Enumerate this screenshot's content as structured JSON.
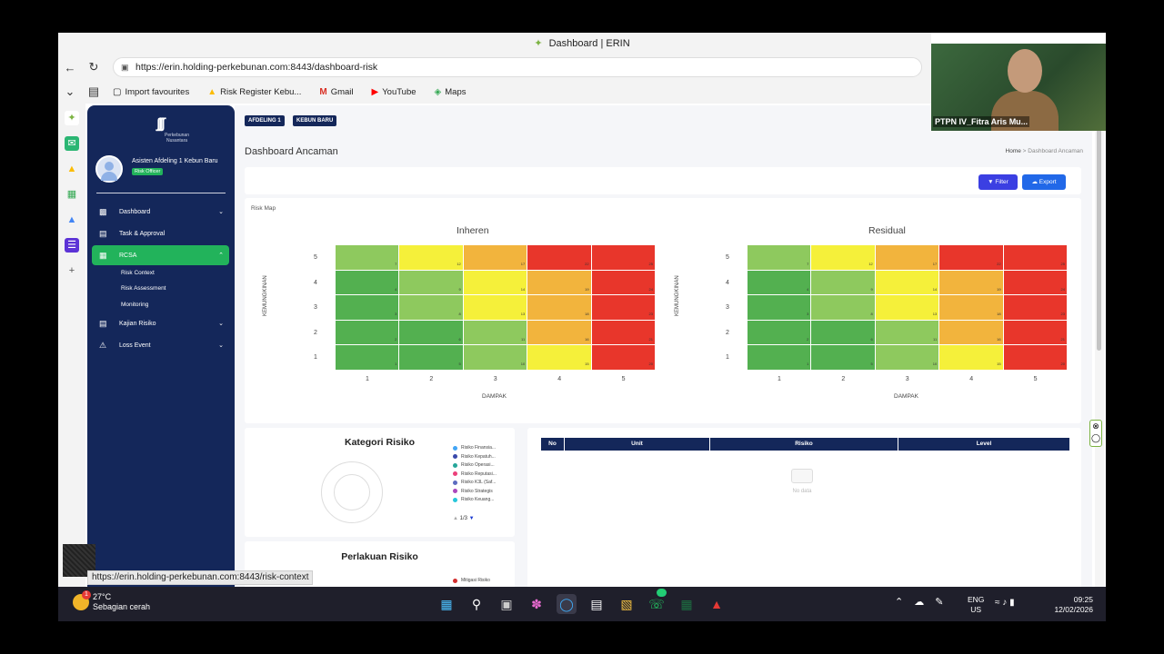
{
  "browser": {
    "window_title": "Dashboard | ERIN",
    "url": "https://erin.holding-perkebunan.com:8443/dashboard-risk",
    "favourites": [
      {
        "icon": "import-icon",
        "label": "Import favourites"
      },
      {
        "icon": "drive-icon",
        "label": "Risk Register Kebu..."
      },
      {
        "icon": "gmail-icon",
        "label": "Gmail"
      },
      {
        "icon": "youtube-icon",
        "label": "YouTube"
      },
      {
        "icon": "maps-icon",
        "label": "Maps"
      }
    ],
    "status_url": "https://erin.holding-perkebunan.com:8443/risk-context"
  },
  "sidebar": {
    "logo_text": "Perkebunan Nusantara",
    "user_name": "Asisten Afdeling 1 Kebun Baru",
    "user_role": "Risk Officer",
    "menu": [
      {
        "label": "Dashboard",
        "icon": "dashboard-icon"
      },
      {
        "label": "Task & Approval",
        "icon": "clipboard-icon"
      },
      {
        "label": "RCSA",
        "icon": "grid-icon"
      },
      {
        "label": "Kajian Risiko",
        "icon": "document-search-icon"
      },
      {
        "label": "Loss Event",
        "icon": "alert-icon"
      }
    ],
    "rcsa_sub": [
      "Risk Context",
      "Risk Assessment",
      "Monitoring"
    ]
  },
  "main": {
    "chips": [
      "AFDELING 1",
      "KEBUN BARU"
    ],
    "page_title": "Dashboard Ancaman",
    "breadcrumb": {
      "home": "Home",
      "sep": ">",
      "current": "Dashboard Ancaman"
    },
    "filter_label": "Filter",
    "export_label": "Export",
    "risk_map_label": "Risk Map",
    "maps": [
      {
        "title": "Inheren"
      },
      {
        "title": "Residual"
      }
    ],
    "y_axis_label": "KEMUNGKINAN",
    "x_axis_label": "DAMPAK",
    "x_ticks": [
      "1",
      "2",
      "3",
      "4",
      "5"
    ],
    "y_ticks": [
      "5",
      "4",
      "3",
      "2",
      "1"
    ],
    "matrix": [
      [
        "7",
        "12",
        "17",
        "22",
        "25"
      ],
      [
        "4",
        "9",
        "14",
        "19",
        "24"
      ],
      [
        "3",
        "8",
        "13",
        "18",
        "23"
      ],
      [
        "2",
        "6",
        "11",
        "16",
        "21"
      ],
      [
        "1",
        "5",
        "10",
        "15",
        "20"
      ]
    ],
    "matrix_colors": [
      [
        "#8ec95e",
        "#f5f03a",
        "#f2b43d",
        "#e8362b",
        "#e8362b"
      ],
      [
        "#53b050",
        "#8ec95e",
        "#f5f03a",
        "#f2b43d",
        "#e8362b"
      ],
      [
        "#53b050",
        "#8ec95e",
        "#f5f03a",
        "#f2b43d",
        "#e8362b"
      ],
      [
        "#53b050",
        "#53b050",
        "#8ec95e",
        "#f2b43d",
        "#e8362b"
      ],
      [
        "#53b050",
        "#53b050",
        "#8ec95e",
        "#f5f03a",
        "#e8362b"
      ]
    ],
    "kategori": {
      "title": "Kategori Risiko",
      "legend": [
        {
          "label": "Risiko Finansia...",
          "color": "#42a5f5"
        },
        {
          "label": "Risiko Kepatuh...",
          "color": "#3949ab"
        },
        {
          "label": "Risiko Operasi...",
          "color": "#26a69a"
        },
        {
          "label": "Risiko Reputasi...",
          "color": "#ec407a"
        },
        {
          "label": "Risiko K3L (Saf...",
          "color": "#5c6bc0"
        },
        {
          "label": "Risiko Strategis",
          "color": "#ab47bc"
        },
        {
          "label": "Risiko Keuang...",
          "color": "#26c6da"
        }
      ],
      "pager": "1/3"
    },
    "perlakuan": {
      "title": "Perlakuan Risiko",
      "legend": "Mitigasi Risiko"
    },
    "table": {
      "columns": [
        "No",
        "Unit",
        "Risiko",
        "Level"
      ],
      "empty_text": "No data"
    }
  },
  "taskbar": {
    "temp": "27°C",
    "weather": "Sebagian cerah",
    "weather_badge": "1",
    "lang": [
      "ENG",
      "US"
    ],
    "time": "09:25",
    "date": "12/02/2026",
    "whatsapp_badge": "17"
  },
  "webcam": {
    "name": "PTPN IV_Fitra Aris Mu..."
  }
}
